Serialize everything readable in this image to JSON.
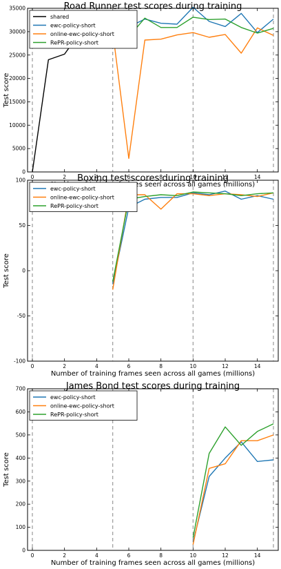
{
  "chart_data": [
    {
      "type": "line",
      "title": "Road Runner test scores during training",
      "xlabel": "Number of training frames seen across all games (millions)",
      "ylabel": "Test score",
      "xlim": [
        -0.3,
        15.3
      ],
      "ylim": [
        0,
        35000
      ],
      "x_ticks": [
        0,
        2,
        4,
        6,
        8,
        10,
        12,
        14
      ],
      "y_ticks": [
        0,
        5000,
        10000,
        15000,
        20000,
        25000,
        30000,
        35000
      ],
      "vlines": [
        0,
        5,
        10,
        15
      ],
      "grid": false,
      "legend_position": "top-left",
      "series": [
        {
          "name": "shared",
          "color": "#000000",
          "x": [
            0,
            1,
            2,
            3,
            4,
            5
          ],
          "y": [
            0,
            24000,
            25200,
            30000,
            30500,
            30500
          ]
        },
        {
          "name": "ewc-policy-short",
          "color": "#1f77b4",
          "x": [
            5,
            6,
            7,
            8,
            9,
            10,
            11,
            12,
            13,
            14,
            15
          ],
          "y": [
            30000,
            31000,
            32700,
            31800,
            31600,
            35200,
            32200,
            31100,
            33900,
            29800,
            32700
          ]
        },
        {
          "name": "online-ewc-policy-short",
          "color": "#ff7f0e",
          "x": [
            5,
            6,
            7,
            8,
            9,
            10,
            11,
            12,
            13,
            14,
            15
          ],
          "y": [
            30000,
            2900,
            28200,
            28400,
            29300,
            29800,
            28800,
            29400,
            25400,
            30800,
            29200
          ]
        },
        {
          "name": "RePR-policy-short",
          "color": "#2ca02c",
          "x": [
            5,
            6,
            7,
            8,
            9,
            10,
            11,
            12,
            13,
            14,
            15
          ],
          "y": [
            29800,
            28900,
            32900,
            30900,
            30900,
            33100,
            32600,
            32700,
            30900,
            29700,
            30700
          ]
        }
      ]
    },
    {
      "type": "line",
      "title": "Boxing test scores during training",
      "xlabel": "Number of training frames seen across all games (millions)",
      "ylabel": "Test score",
      "xlim": [
        -0.3,
        15.3
      ],
      "ylim": [
        -100,
        100
      ],
      "x_ticks": [
        0,
        2,
        4,
        6,
        8,
        10,
        12,
        14
      ],
      "y_ticks": [
        -100,
        -50,
        0,
        50,
        100
      ],
      "vlines": [
        0,
        5,
        10,
        15
      ],
      "grid": false,
      "legend_position": "top-left",
      "series": [
        {
          "name": "ewc-policy-short",
          "color": "#1f77b4",
          "x": [
            5,
            6,
            7,
            8,
            9,
            10,
            11,
            12,
            13,
            14,
            15
          ],
          "y": [
            -15,
            70,
            79,
            81,
            81,
            86,
            84,
            88,
            79,
            83,
            79
          ]
        },
        {
          "name": "online-ewc-policy-short",
          "color": "#ff7f0e",
          "x": [
            5,
            6,
            7,
            8,
            9,
            10,
            11,
            12,
            13,
            14,
            15
          ],
          "y": [
            -21,
            84,
            84,
            68,
            85,
            85,
            83,
            85,
            84,
            82,
            86
          ]
        },
        {
          "name": "RePR-policy-short",
          "color": "#2ca02c",
          "x": [
            5,
            6,
            7,
            8,
            9,
            10,
            11,
            12,
            13,
            14,
            15
          ],
          "y": [
            -12,
            79,
            82,
            84,
            83,
            87,
            86,
            85,
            83,
            85,
            86
          ]
        }
      ]
    },
    {
      "type": "line",
      "title": "James Bond test scores during training",
      "xlabel": "Number of training frames seen across all games (millions)",
      "ylabel": "Test score",
      "xlim": [
        -0.3,
        15.3
      ],
      "ylim": [
        0,
        700
      ],
      "x_ticks": [
        0,
        2,
        4,
        6,
        8,
        10,
        12,
        14
      ],
      "y_ticks": [
        0,
        100,
        200,
        300,
        400,
        500,
        600,
        700
      ],
      "vlines": [
        0,
        5,
        10,
        15
      ],
      "grid": false,
      "legend_position": "top-left",
      "series": [
        {
          "name": "ewc-policy-short",
          "color": "#1f77b4",
          "x": [
            10,
            11,
            12,
            13,
            14,
            15
          ],
          "y": [
            35,
            320,
            400,
            470,
            385,
            392
          ]
        },
        {
          "name": "online-ewc-policy-short",
          "color": "#ff7f0e",
          "x": [
            10,
            11,
            12,
            13,
            14,
            15
          ],
          "y": [
            25,
            355,
            375,
            475,
            475,
            500
          ]
        },
        {
          "name": "RePR-policy-short",
          "color": "#2ca02c",
          "x": [
            10,
            11,
            12,
            13,
            14,
            15
          ],
          "y": [
            55,
            420,
            535,
            455,
            515,
            548
          ]
        }
      ]
    }
  ]
}
